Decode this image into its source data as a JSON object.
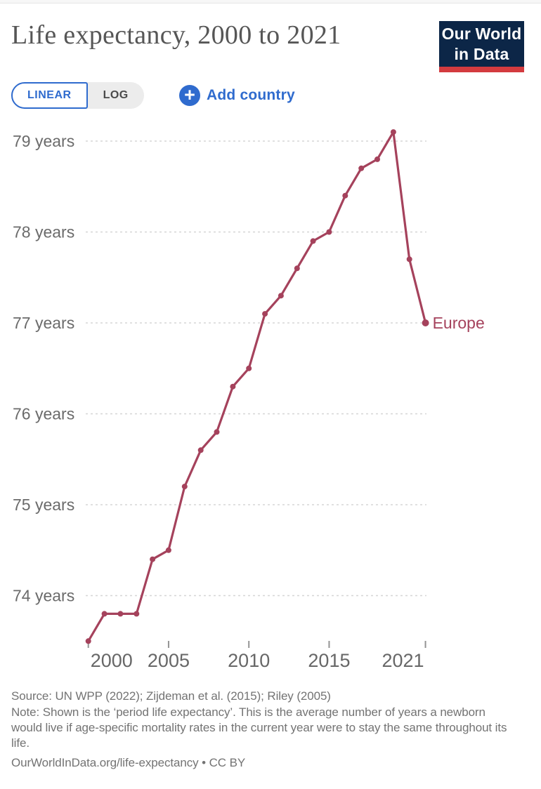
{
  "header": {
    "title": "Life expectancy, 2000 to 2021",
    "logo_line1": "Our World",
    "logo_line2": "in Data"
  },
  "controls": {
    "linear": "LINEAR",
    "log": "LOG",
    "plus_icon": "+",
    "add_country": "Add country"
  },
  "chart_data": {
    "type": "line",
    "title": "Life expectancy, 2000 to 2021",
    "x": [
      2000,
      2001,
      2002,
      2003,
      2004,
      2005,
      2006,
      2007,
      2008,
      2009,
      2010,
      2011,
      2012,
      2013,
      2014,
      2015,
      2016,
      2017,
      2018,
      2019,
      2020,
      2021
    ],
    "series": [
      {
        "name": "Europe",
        "color": "#a5425c",
        "values": [
          73.5,
          73.8,
          73.8,
          73.8,
          74.4,
          74.5,
          75.2,
          75.6,
          75.8,
          76.3,
          76.5,
          77.1,
          77.3,
          77.6,
          77.9,
          78.0,
          78.4,
          78.7,
          78.8,
          79.1,
          77.7,
          77.0
        ]
      }
    ],
    "xlim": [
      2000,
      2021
    ],
    "ylim": [
      73.4,
      79.2
    ],
    "yticks": [
      {
        "value": 74,
        "label": "74 years"
      },
      {
        "value": 75,
        "label": "75 years"
      },
      {
        "value": 76,
        "label": "76 years"
      },
      {
        "value": 77,
        "label": "77 years"
      },
      {
        "value": 78,
        "label": "78 years"
      },
      {
        "value": 79,
        "label": "79 years"
      }
    ],
    "xticks": [
      {
        "value": 2000,
        "label": "2000"
      },
      {
        "value": 2005,
        "label": "2005"
      },
      {
        "value": 2010,
        "label": "2010"
      },
      {
        "value": 2015,
        "label": "2015"
      },
      {
        "value": 2021,
        "label": "2021"
      }
    ],
    "grid": "horizontal-dashed",
    "legend_position": "end-of-line",
    "grid_color": "#d5d5d5",
    "axis_text_color": "#6b6b6b",
    "tick_color": "#949494"
  },
  "footer": {
    "source": "Source: UN WPP (2022); Zijdeman et al. (2015); Riley (2005)",
    "note": "Note: Shown is the ‘period life expectancy’. This is the average number of years a newborn would live if age-specific mortality rates in the current year were to stay the same throughout its life.",
    "link": "OurWorldInData.org/life-expectancy",
    "license_suffix": " • CC BY"
  }
}
